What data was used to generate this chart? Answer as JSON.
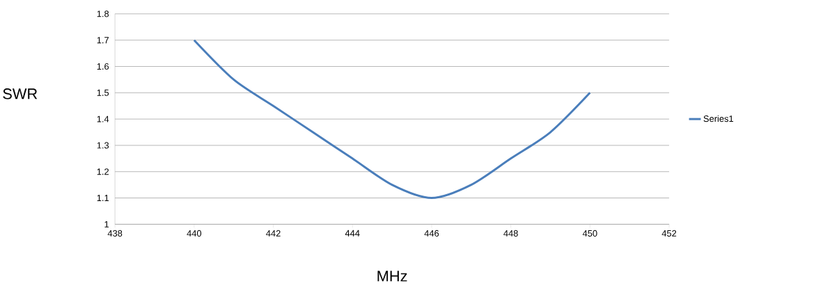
{
  "chart_data": {
    "type": "line",
    "xlabel": "MHz",
    "ylabel": "SWR",
    "x": [
      440,
      441,
      442,
      443,
      444,
      445,
      446,
      447,
      448,
      449,
      450
    ],
    "series": [
      {
        "name": "Series1",
        "color": "#4a7ebb",
        "values": [
          1.7,
          1.55,
          1.45,
          1.35,
          1.25,
          1.15,
          1.1,
          1.15,
          1.25,
          1.35,
          1.5
        ]
      }
    ],
    "xlim": [
      438,
      452
    ],
    "xticks": [
      438,
      440,
      442,
      444,
      446,
      448,
      450,
      452
    ],
    "ylim": [
      1,
      1.8
    ],
    "yticks": [
      1,
      1.1,
      1.2,
      1.3,
      1.4,
      1.5,
      1.6,
      1.7,
      1.8
    ],
    "grid": "y",
    "legend": "right",
    "marker": "none",
    "line_style": "solid"
  }
}
